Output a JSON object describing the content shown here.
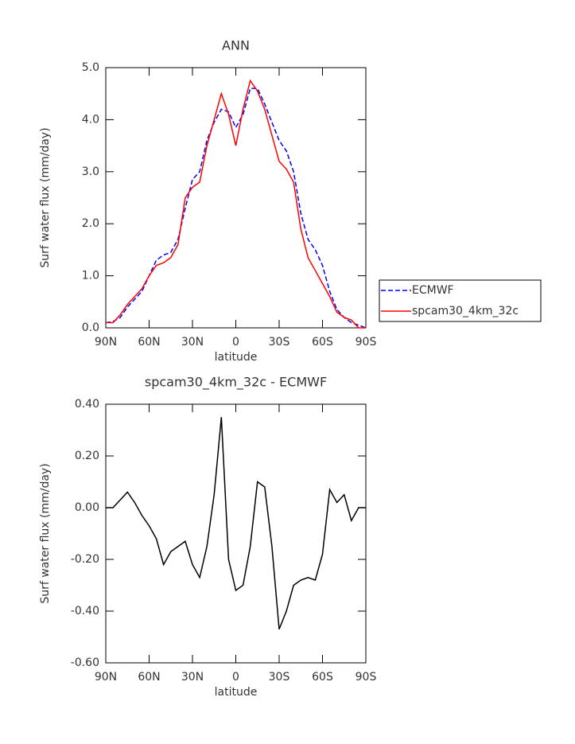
{
  "chart_data": [
    {
      "type": "line",
      "title": "ANN",
      "xlabel": "latitude",
      "ylabel": "Surf water flux (mm/day)",
      "x": [
        90,
        85,
        80,
        75,
        70,
        65,
        60,
        55,
        50,
        45,
        40,
        35,
        30,
        25,
        20,
        15,
        10,
        5,
        0,
        -5,
        -10,
        -15,
        -20,
        -25,
        -30,
        -35,
        -40,
        -45,
        -50,
        -55,
        -60,
        -65,
        -70,
        -75,
        -80,
        -85,
        -90
      ],
      "xlim": [
        90,
        -90
      ],
      "xticks": [
        {
          "value": 90,
          "label": "90N"
        },
        {
          "value": 60,
          "label": "60N"
        },
        {
          "value": 30,
          "label": "30N"
        },
        0,
        {
          "value": -30,
          "label": "30S"
        },
        {
          "value": -60,
          "label": "60S"
        },
        {
          "value": -90,
          "label": "90S"
        }
      ],
      "ylim": [
        0,
        5
      ],
      "yticks": [
        {
          "value": 0,
          "label": "0.0"
        },
        {
          "value": 1,
          "label": "1.0"
        },
        {
          "value": 2,
          "label": "2.0"
        },
        {
          "value": 3,
          "label": "3.0"
        },
        {
          "value": 4,
          "label": "4.0"
        },
        {
          "value": 5,
          "label": "5.0"
        }
      ],
      "legend": "right",
      "series": [
        {
          "name": "ECMWF",
          "color": "#0000ff",
          "dash": true,
          "values": [
            0.1,
            0.12,
            0.2,
            0.4,
            0.55,
            0.7,
            1.0,
            1.3,
            1.4,
            1.45,
            1.7,
            2.3,
            2.85,
            3.0,
            3.6,
            3.95,
            4.2,
            4.15,
            3.85,
            4.1,
            4.6,
            4.6,
            4.3,
            3.95,
            3.6,
            3.4,
            3.0,
            2.2,
            1.7,
            1.5,
            1.2,
            0.7,
            0.35,
            0.2,
            0.1,
            0.05,
            0.0
          ]
        },
        {
          "name": "spcam30_4km_32c",
          "color": "#ff0000",
          "dash": false,
          "values": [
            0.1,
            0.1,
            0.25,
            0.45,
            0.6,
            0.75,
            1.0,
            1.2,
            1.25,
            1.35,
            1.6,
            2.5,
            2.7,
            2.8,
            3.5,
            4.0,
            4.5,
            4.1,
            3.5,
            4.2,
            4.75,
            4.55,
            4.2,
            3.7,
            3.2,
            3.05,
            2.8,
            1.9,
            1.35,
            1.1,
            0.85,
            0.6,
            0.3,
            0.2,
            0.15,
            0.0,
            0.0
          ]
        }
      ]
    },
    {
      "type": "line",
      "title": "spcam30_4km_32c - ECMWF",
      "xlabel": "latitude",
      "ylabel": "Surf water flux (mm/day)",
      "x": [
        90,
        85,
        80,
        75,
        70,
        65,
        60,
        55,
        50,
        45,
        40,
        35,
        30,
        25,
        20,
        15,
        10,
        5,
        0,
        -5,
        -10,
        -15,
        -20,
        -25,
        -30,
        -35,
        -40,
        -45,
        -50,
        -55,
        -60,
        -65,
        -70,
        -75,
        -80,
        -85,
        -90
      ],
      "xlim": [
        90,
        -90
      ],
      "xticks": [
        {
          "value": 90,
          "label": "90N"
        },
        {
          "value": 60,
          "label": "60N"
        },
        {
          "value": 30,
          "label": "30N"
        },
        0,
        {
          "value": -30,
          "label": "30S"
        },
        {
          "value": -60,
          "label": "60S"
        },
        {
          "value": -90,
          "label": "90S"
        }
      ],
      "ylim": [
        -0.6,
        0.4
      ],
      "yticks": [
        {
          "value": -0.6,
          "label": "-0.60"
        },
        {
          "value": -0.4,
          "label": "-0.40"
        },
        {
          "value": -0.2,
          "label": "-0.20"
        },
        {
          "value": 0,
          "label": "0.00"
        },
        {
          "value": 0.2,
          "label": "0.20"
        },
        {
          "value": 0.4,
          "label": "0.40"
        }
      ],
      "series": [
        {
          "color": "#000000",
          "dash": false,
          "values": [
            0,
            0,
            0.03,
            0.06,
            0.02,
            -0.03,
            -0.07,
            -0.12,
            -0.22,
            -0.17,
            -0.15,
            -0.13,
            -0.22,
            -0.27,
            -0.15,
            0.05,
            0.35,
            -0.2,
            -0.32,
            -0.3,
            -0.15,
            0.1,
            0.08,
            -0.15,
            -0.47,
            -0.4,
            -0.3,
            -0.28,
            -0.27,
            -0.28,
            -0.18,
            0.07,
            0.02,
            0.05,
            -0.05,
            0.0,
            0.0
          ]
        }
      ]
    }
  ]
}
